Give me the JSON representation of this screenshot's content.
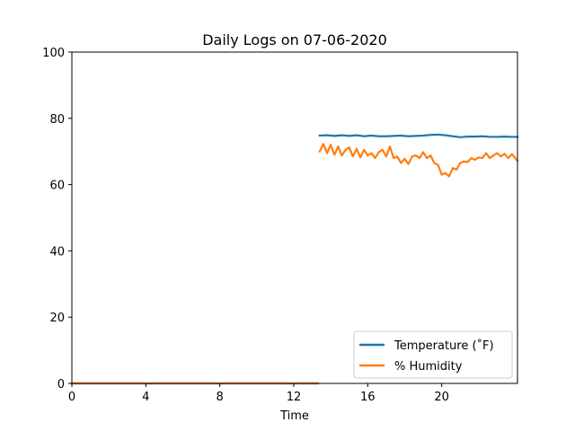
{
  "chart_data": {
    "type": "line",
    "title": "Daily Logs on 07-06-2020",
    "xlabel": "Time",
    "ylabel": "",
    "xlim": [
      0,
      24.1
    ],
    "ylim": [
      0,
      100
    ],
    "xticks": [
      0,
      4,
      8,
      12,
      16,
      20
    ],
    "yticks": [
      0,
      20,
      40,
      60,
      80,
      100
    ],
    "grid": false,
    "legend_position": "lower-right",
    "series": [
      {
        "name": "Temperature (˚F)",
        "color": "#1f77b4",
        "x": [
          0,
          13.3,
          13.4,
          13.8,
          14.2,
          14.6,
          15.0,
          15.4,
          15.8,
          16.2,
          16.6,
          17.0,
          17.4,
          17.8,
          18.2,
          18.6,
          19.0,
          19.4,
          19.8,
          20.2,
          20.6,
          21.0,
          21.4,
          21.8,
          22.2,
          22.6,
          23.0,
          23.4,
          23.8,
          24.1
        ],
        "y": [
          0,
          0,
          74.8,
          74.9,
          74.7,
          74.9,
          74.7,
          74.9,
          74.6,
          74.8,
          74.6,
          74.6,
          74.7,
          74.8,
          74.6,
          74.7,
          74.8,
          75.0,
          75.1,
          74.9,
          74.6,
          74.3,
          74.5,
          74.5,
          74.6,
          74.4,
          74.4,
          74.5,
          74.4,
          74.4
        ]
      },
      {
        "name": "% Humidity",
        "color": "#ff7f0e",
        "x": [
          0,
          13.3,
          13.4,
          13.6,
          13.8,
          14.0,
          14.2,
          14.4,
          14.6,
          14.8,
          15.0,
          15.2,
          15.4,
          15.6,
          15.8,
          16.0,
          16.2,
          16.4,
          16.6,
          16.8,
          17.0,
          17.2,
          17.4,
          17.6,
          17.8,
          18.0,
          18.2,
          18.4,
          18.6,
          18.8,
          19.0,
          19.2,
          19.4,
          19.6,
          19.8,
          20.0,
          20.2,
          20.4,
          20.6,
          20.8,
          21.0,
          21.2,
          21.4,
          21.6,
          21.8,
          22.0,
          22.2,
          22.4,
          22.6,
          22.8,
          23.0,
          23.2,
          23.4,
          23.6,
          23.8,
          24.1
        ],
        "y": [
          0,
          0,
          70.0,
          72.3,
          69.5,
          72.0,
          69.0,
          71.5,
          68.8,
          70.5,
          71.2,
          68.5,
          70.8,
          68.2,
          70.5,
          68.8,
          69.5,
          68.0,
          69.8,
          70.5,
          68.5,
          71.5,
          68.0,
          68.5,
          66.5,
          67.8,
          66.2,
          68.5,
          68.8,
          68.0,
          69.8,
          68.0,
          68.8,
          66.5,
          66.0,
          63.0,
          63.5,
          62.5,
          65.0,
          64.5,
          66.5,
          67.0,
          66.8,
          68.0,
          67.5,
          68.2,
          68.0,
          69.5,
          68.0,
          68.8,
          69.5,
          68.5,
          69.3,
          68.0,
          69.2,
          67.2
        ]
      }
    ]
  }
}
